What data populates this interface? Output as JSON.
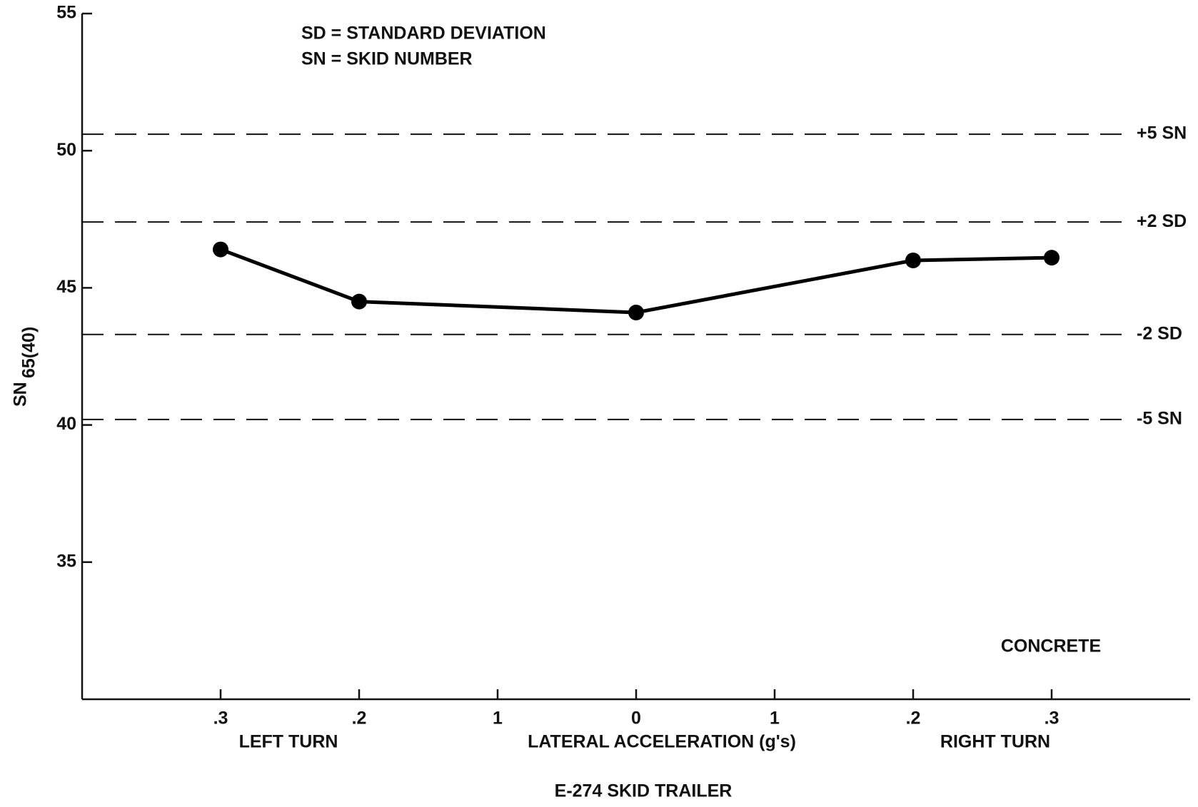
{
  "chart_data": {
    "type": "line",
    "legend_lines": [
      "SD = STANDARD DEVIATION",
      "SN = SKID NUMBER"
    ],
    "annotation": "CONCRETE",
    "xlabel": "LATERAL ACCELERATION (g's)",
    "group_labels": [
      "LEFT TURN",
      "RIGHT TURN"
    ],
    "caption": "E-274 SKID TRAILER",
    "ylabel": "SN",
    "ylabel_sub": "65(40)",
    "x": [
      -0.3,
      -0.2,
      0,
      0.2,
      0.3
    ],
    "series": [
      {
        "color": "#000000",
        "values": [
          46.4,
          44.5,
          44.1,
          46.0,
          46.1
        ]
      }
    ],
    "refs": [
      {
        "value": 50.6,
        "label": "+5 SN"
      },
      {
        "value": 47.4,
        "label": "+2 SD"
      },
      {
        "value": 43.3,
        "label": "-2 SD"
      },
      {
        "value": 40.2,
        "label": "-5 SN"
      }
    ],
    "xlim": [
      -0.4,
      0.4
    ],
    "ylim": [
      30,
      55
    ],
    "xticks": [
      {
        "value": -0.3,
        "label": ".3"
      },
      {
        "value": -0.2,
        "label": ".2"
      },
      {
        "value": -0.1,
        "label": "1"
      },
      0,
      {
        "value": 0.1,
        "label": "1"
      },
      {
        "value": 0.2,
        "label": ".2"
      },
      {
        "value": 0.3,
        "label": ".3"
      }
    ],
    "yticks": [
      35,
      40,
      45,
      50,
      55
    ]
  }
}
